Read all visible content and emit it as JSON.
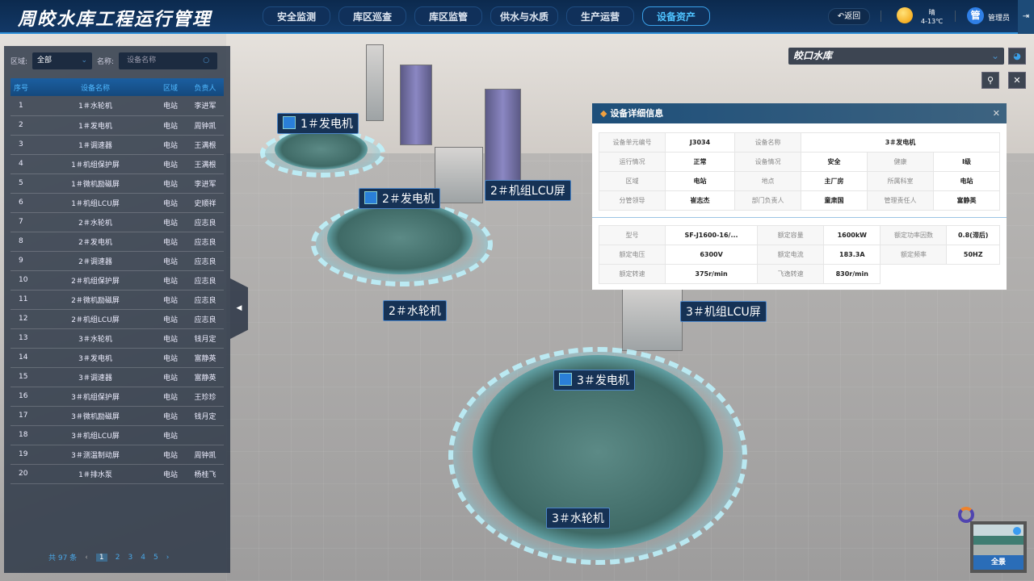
{
  "header": {
    "title": "周皎水库工程运行管理",
    "nav": [
      "安全监测",
      "库区巡查",
      "库区监管",
      "供水与水质",
      "生产运营",
      "设备资产"
    ],
    "active_nav": "设备资产",
    "back": "返回",
    "weather": {
      "condition": "晴",
      "temp": "4-13℃",
      "icon": "sun-icon"
    },
    "user": {
      "avatar": "管",
      "name": "管理员"
    }
  },
  "filter": {
    "region_label": "区域:",
    "region_value": "全部",
    "name_label": "名称:",
    "name_placeholder": "设备名称"
  },
  "table": {
    "headers": [
      "序号",
      "设备名称",
      "区域",
      "负责人"
    ],
    "rows": [
      [
        "1",
        "1＃水轮机",
        "电站",
        "李进军"
      ],
      [
        "2",
        "1＃发电机",
        "电站",
        "周钟凯"
      ],
      [
        "3",
        "1＃调速器",
        "电站",
        "王满根"
      ],
      [
        "4",
        "1＃机组保护屏",
        "电站",
        "王满根"
      ],
      [
        "5",
        "1＃微机励磁屏",
        "电站",
        "李进军"
      ],
      [
        "6",
        "1＃机组LCU屏",
        "电站",
        "史顺祥"
      ],
      [
        "7",
        "2＃水轮机",
        "电站",
        "应志良"
      ],
      [
        "8",
        "2＃发电机",
        "电站",
        "应志良"
      ],
      [
        "9",
        "2＃调速器",
        "电站",
        "应志良"
      ],
      [
        "10",
        "2＃机组保护屏",
        "电站",
        "应志良"
      ],
      [
        "11",
        "2＃微机励磁屏",
        "电站",
        "应志良"
      ],
      [
        "12",
        "2＃机组LCU屏",
        "电站",
        "应志良"
      ],
      [
        "13",
        "3＃水轮机",
        "电站",
        "钱月定"
      ],
      [
        "14",
        "3＃发电机",
        "电站",
        "富静英"
      ],
      [
        "15",
        "3＃调速器",
        "电站",
        "富静英"
      ],
      [
        "16",
        "3＃机组保护屏",
        "电站",
        "王珍珍"
      ],
      [
        "17",
        "3＃微机励磁屏",
        "电站",
        "钱月定"
      ],
      [
        "18",
        "3＃机组LCU屏",
        "电站",
        ""
      ],
      [
        "19",
        "3＃测温制动屏",
        "电站",
        "周钟凯"
      ],
      [
        "20",
        "1＃排水泵",
        "电站",
        "杨桂飞"
      ]
    ]
  },
  "pager": {
    "total": "共 97 条",
    "pages": [
      "1",
      "2",
      "3",
      "4",
      "5"
    ],
    "current": "1"
  },
  "reservoir": "皎口水库",
  "scene_labels": {
    "g1": "1＃发电机",
    "g2": "2＃发电机",
    "lcu2": "2＃机组LCU屏",
    "t2": "2＃水轮机",
    "lcu3": "3＃机组LCU屏",
    "g3": "3＃发电机",
    "t3": "3＃水轮机"
  },
  "detail": {
    "title": "设备详细信息",
    "basic": [
      [
        "设备单元编号",
        "J3034",
        "设备名称",
        "3＃发电机"
      ],
      [
        "运行情况",
        "正常",
        "设备情况",
        "安全",
        "健康",
        "I级"
      ],
      [
        "区域",
        "电站",
        "地点",
        "主厂房",
        "所属科室",
        "电站"
      ],
      [
        "分管领导",
        "崔志杰",
        "部门负责人",
        "童肃国",
        "管理责任人",
        "富静英"
      ]
    ],
    "params": [
      [
        "型号",
        "SF-J1600-16/...",
        "额定容量",
        "1600kW",
        "额定功率因数",
        "0.8(滞后)"
      ],
      [
        "额定电压",
        "6300V",
        "额定电流",
        "183.3A",
        "额定频率",
        "50HZ"
      ],
      [
        "额定转速",
        "375r/min",
        "飞逸转速",
        "830r/min"
      ]
    ]
  },
  "thumbnail": {
    "label": "全景"
  }
}
